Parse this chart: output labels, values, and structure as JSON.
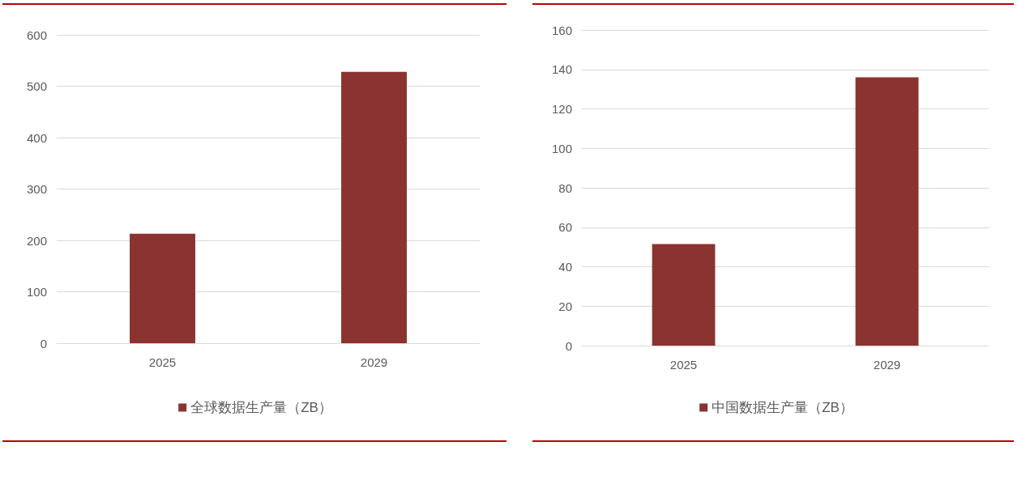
{
  "chart_data": [
    {
      "type": "bar",
      "categories": [
        "2025",
        "2029"
      ],
      "series": [
        {
          "name": "全球数据生产量（ZB）",
          "color": "#8b3330",
          "values": [
            213,
            528
          ]
        }
      ],
      "ylim": [
        0,
        600
      ],
      "yticks": [
        0,
        100,
        200,
        300,
        400,
        500,
        600
      ],
      "grid": "y",
      "legend": "bottom"
    },
    {
      "type": "bar",
      "categories": [
        "2025",
        "2029"
      ],
      "series": [
        {
          "name": "中国数据生产量（ZB）",
          "color": "#8b3330",
          "values": [
            51.5,
            136
          ]
        }
      ],
      "ylim": [
        0,
        160
      ],
      "yticks": [
        0,
        20,
        40,
        60,
        80,
        100,
        120,
        140,
        160
      ],
      "grid": "y",
      "legend": "bottom"
    }
  ]
}
